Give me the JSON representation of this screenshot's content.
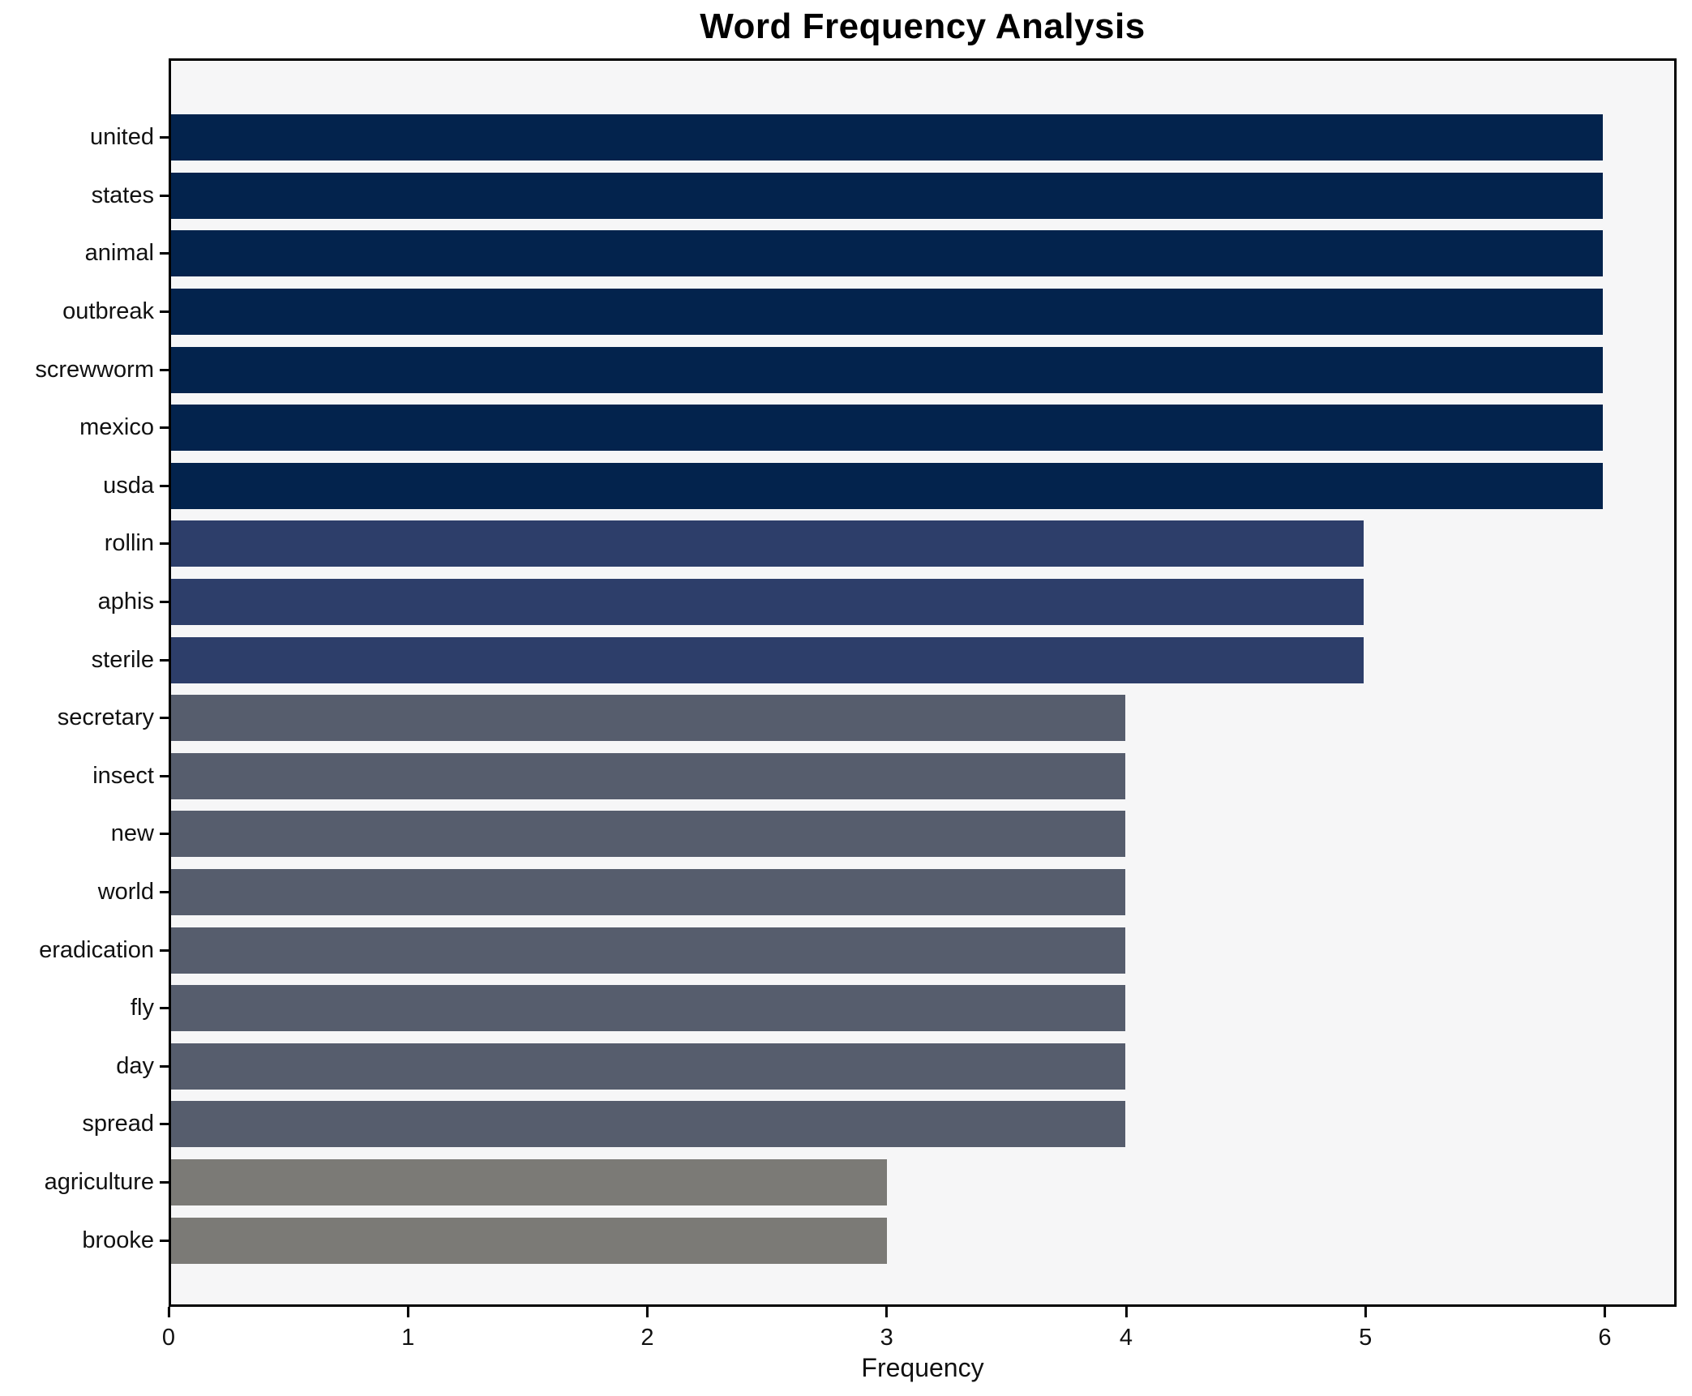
{
  "title": "Word Frequency Analysis",
  "chart_data": {
    "type": "bar",
    "orientation": "horizontal",
    "title": "Word Frequency Analysis",
    "xlabel": "Frequency",
    "ylabel": "",
    "categories": [
      "united",
      "states",
      "animal",
      "outbreak",
      "screwworm",
      "mexico",
      "usda",
      "rollin",
      "aphis",
      "sterile",
      "secretary",
      "insect",
      "new",
      "world",
      "eradication",
      "fly",
      "day",
      "spread",
      "agriculture",
      "brooke"
    ],
    "values": [
      6,
      6,
      6,
      6,
      6,
      6,
      6,
      5,
      5,
      5,
      4,
      4,
      4,
      4,
      4,
      4,
      4,
      4,
      3,
      3
    ],
    "xticks": [
      0,
      1,
      2,
      3,
      4,
      5,
      6
    ],
    "xlim": [
      0,
      6.3
    ],
    "grid": false,
    "legend": null,
    "value_colors": {
      "6": "#03234d",
      "5": "#2d3e6a",
      "4": "#565d6d",
      "3": "#7b7a76"
    },
    "plot_background": "#f6f6f7",
    "figure_background": "#ffffff",
    "spine_color": "#000000"
  }
}
